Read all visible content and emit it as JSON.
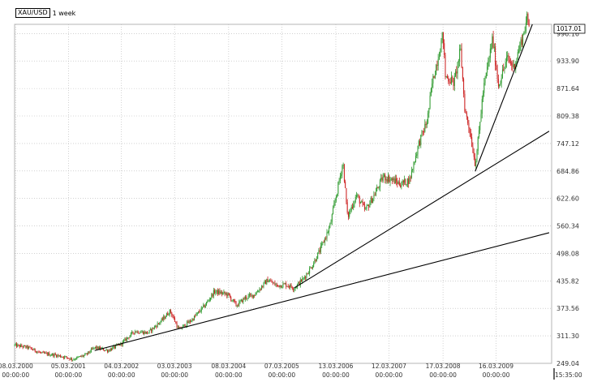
{
  "header": {
    "symbol": "XAU/USD",
    "timeframe": "1 week"
  },
  "colors": {
    "up": "#2e9a2e",
    "down": "#cc1f1f",
    "grid": "#b5b5b5",
    "trendline": "#000000",
    "axis": "#333333"
  },
  "chart_data": {
    "type": "candlestick",
    "title": "XAU/USD 1 week",
    "last_price_label": "1017.01",
    "bottom_right_time": "15:35:00",
    "yaxis": {
      "ticks": [
        "996.16",
        "933.90",
        "871.64",
        "809.38",
        "747.12",
        "684.86",
        "622.60",
        "560.34",
        "498.08",
        "435.82",
        "373.56",
        "311.30",
        "249.04"
      ],
      "range": [
        249.04,
        1017.01
      ],
      "grid": true
    },
    "xaxis": {
      "ticks": [
        {
          "date": "08.03.2000",
          "time": "00:00:00"
        },
        {
          "date": "05.03.2001",
          "time": "00:00:00"
        },
        {
          "date": "04.03.2002",
          "time": "00:00:00"
        },
        {
          "date": "03.03.2003",
          "time": "00:00:00"
        },
        {
          "date": "08.03.2004",
          "time": "00:00:00"
        },
        {
          "date": "07.03.2005",
          "time": "00:00:00"
        },
        {
          "date": "13.03.2006",
          "time": "00:00:00"
        },
        {
          "date": "12.03.2007",
          "time": "00:00:00"
        },
        {
          "date": "17.03.2008",
          "time": "00:00:00"
        },
        {
          "date": "16.03.2009",
          "time": "00:00:00"
        }
      ],
      "range": [
        "2000-03-01",
        "2010-04-01"
      ],
      "grid": true
    },
    "price_path": [
      [
        "2000-03-01",
        290
      ],
      [
        "2000-06-01",
        285
      ],
      [
        "2000-09-01",
        272
      ],
      [
        "2000-12-01",
        268
      ],
      [
        "2001-03-01",
        262
      ],
      [
        "2001-04-01",
        258
      ],
      [
        "2001-07-01",
        268
      ],
      [
        "2001-09-01",
        285
      ],
      [
        "2001-12-01",
        278
      ],
      [
        "2002-03-01",
        293
      ],
      [
        "2002-06-01",
        322
      ],
      [
        "2002-09-01",
        318
      ],
      [
        "2002-12-01",
        345
      ],
      [
        "2003-02-01",
        368
      ],
      [
        "2003-04-01",
        325
      ],
      [
        "2003-07-01",
        348
      ],
      [
        "2003-10-01",
        382
      ],
      [
        "2003-12-01",
        412
      ],
      [
        "2004-03-01",
        405
      ],
      [
        "2004-05-01",
        380
      ],
      [
        "2004-07-01",
        398
      ],
      [
        "2004-09-01",
        405
      ],
      [
        "2004-12-01",
        438
      ],
      [
        "2005-02-01",
        425
      ],
      [
        "2005-04-01",
        428
      ],
      [
        "2005-06-01",
        420
      ],
      [
        "2005-08-01",
        440
      ],
      [
        "2005-10-01",
        470
      ],
      [
        "2005-12-01",
        510
      ],
      [
        "2006-02-01",
        560
      ],
      [
        "2006-05-01",
        705
      ],
      [
        "2006-06-01",
        580
      ],
      [
        "2006-08-01",
        630
      ],
      [
        "2006-10-01",
        595
      ],
      [
        "2006-12-01",
        630
      ],
      [
        "2007-02-01",
        672
      ],
      [
        "2007-04-01",
        665
      ],
      [
        "2007-06-01",
        655
      ],
      [
        "2007-08-01",
        665
      ],
      [
        "2007-10-01",
        745
      ],
      [
        "2007-12-01",
        800
      ],
      [
        "2008-01-01",
        880
      ],
      [
        "2008-03-17",
        995
      ],
      [
        "2008-04-01",
        900
      ],
      [
        "2008-06-01",
        885
      ],
      [
        "2008-07-15",
        960
      ],
      [
        "2008-08-15",
        820
      ],
      [
        "2008-09-15",
        780
      ],
      [
        "2008-10-24",
        700
      ],
      [
        "2008-11-15",
        760
      ],
      [
        "2008-12-15",
        860
      ],
      [
        "2009-02-20",
        985
      ],
      [
        "2009-04-01",
        880
      ],
      [
        "2009-06-01",
        940
      ],
      [
        "2009-07-15",
        920
      ],
      [
        "2009-09-15",
        990
      ],
      [
        "2009-10-15",
        1030
      ],
      [
        "2009-11-01",
        1010
      ]
    ],
    "trendlines": [
      {
        "start": [
          "2001-09-01",
          278
        ],
        "end": [
          "2010-03-15",
          545
        ]
      },
      {
        "start": [
          "2005-06-01",
          420
        ],
        "end": [
          "2010-03-15",
          775
        ]
      },
      {
        "start": [
          "2008-10-24",
          684
        ],
        "end": [
          "2009-11-20",
          1017
        ]
      }
    ]
  }
}
